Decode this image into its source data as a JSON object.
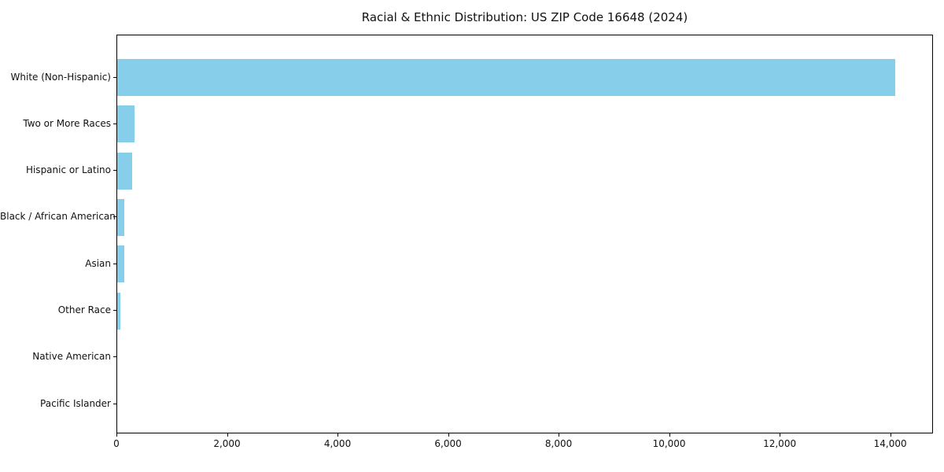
{
  "chart_data": {
    "type": "bar",
    "orientation": "horizontal",
    "title": "Racial & Ethnic Distribution: US ZIP Code 16648 (2024)",
    "categories": [
      "White (Non-Hispanic)",
      "Two or More Races",
      "Hispanic or Latino",
      "Black / African American",
      "Asian",
      "Other Race",
      "Native American",
      "Pacific Islander"
    ],
    "values": [
      14070,
      310,
      277,
      127,
      122,
      50,
      0,
      0
    ],
    "xlabel": "",
    "ylabel": "",
    "xlim": [
      0,
      14774
    ],
    "xticks": [
      0,
      2000,
      4000,
      6000,
      8000,
      10000,
      12000,
      14000
    ],
    "grid": false,
    "legend_position": "none",
    "bar_color": "#87CEEB",
    "spine_color": "#000000",
    "text_color": "#111111",
    "background_color": "#ffffff"
  }
}
